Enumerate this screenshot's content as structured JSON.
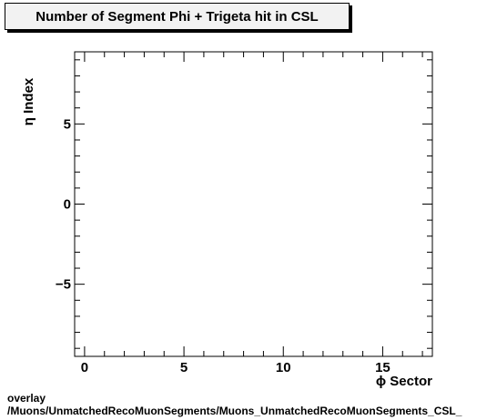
{
  "chart_data": {
    "type": "scatter",
    "title": "Number of Segment Phi + Trigeta hit in CSL",
    "xlabel": "ϕ Sector",
    "ylabel": "η Index",
    "xlim": [
      -0.5,
      17.5
    ],
    "ylim": [
      -9.5,
      9.5
    ],
    "x_ticks": [
      0,
      5,
      10,
      15
    ],
    "x_tick_labels": [
      "0",
      "5",
      "10",
      "15"
    ],
    "y_ticks": [
      -5,
      0,
      5
    ],
    "y_tick_labels": [
      "−5",
      "0",
      "5"
    ],
    "x": [],
    "y": [],
    "grid": false,
    "legend": "none"
  },
  "footer": {
    "line1": "overlay",
    "line2": "/Muons/UnmatchedRecoMuonSegments/Muons_UnmatchedRecoMuonSegments_CSL_"
  }
}
